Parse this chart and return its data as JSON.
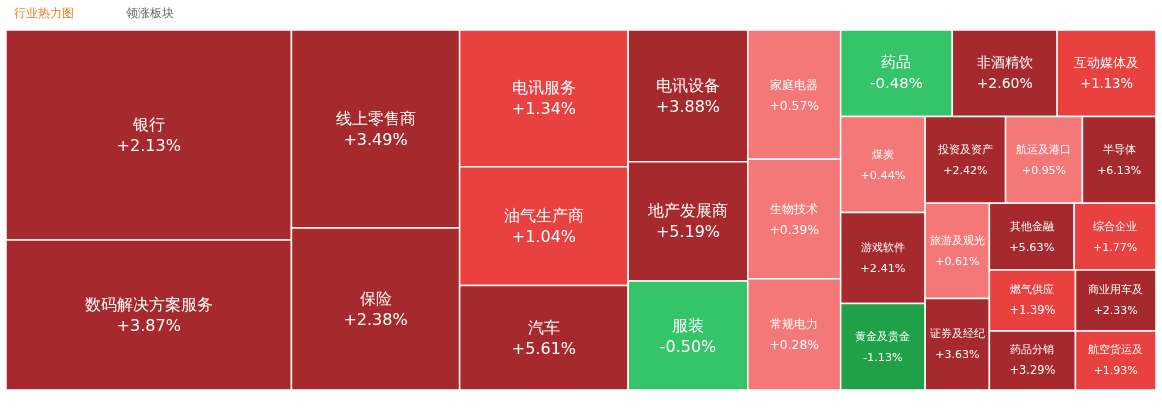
{
  "chart_data": {
    "type": "other",
    "annotations": [
      "行业热力图",
      "领涨板块"
    ],
    "categories": [
      "银行",
      "数码解决方案服务",
      "线上零售商",
      "保险",
      "电讯服务",
      "油气生产商",
      "汽车",
      "电讯设备",
      "地产发展商",
      "服装",
      "家庭电器",
      "生物技术",
      "常规电力",
      "药品",
      "非酒精饮",
      "互动媒体及",
      "煤炭",
      "游戏软件",
      "黄金及贵金",
      "投资及资产",
      "航运及港口",
      "半导体",
      "旅游及观光",
      "证券及经纪",
      "其他金融",
      "综合企业",
      "燃气供应",
      "药品分销",
      "商业用车及",
      "航空货运及"
    ],
    "values": [
      2.13,
      3.87,
      3.49,
      2.38,
      1.34,
      1.04,
      5.61,
      3.88,
      5.19,
      -0.5,
      0.57,
      0.39,
      0.28,
      -0.48,
      2.6,
      1.13,
      0.44,
      2.41,
      -1.13,
      2.42,
      0.95,
      6.13,
      0.61,
      3.63,
      5.63,
      1.77,
      1.39,
      3.29,
      2.33,
      1.93
    ],
    "value_labels": [
      "+2.13%",
      "+3.87%",
      "+3.49%",
      "+2.38%",
      "+1.34%",
      "+1.04%",
      "+5.61%",
      "+3.88%",
      "+5.19%",
      "-0.50%",
      "+0.57%",
      "+0.39%",
      "+0.28%",
      "-0.48%",
      "+2.60%",
      "+1.13%",
      "+0.44%",
      "+2.41%",
      "-1.13%",
      "+2.42%",
      "+0.95%",
      "+6.13%",
      "+0.61%",
      "+3.63%",
      "+5.63%",
      "+1.77%",
      "+1.39%",
      "+3.29%",
      "+2.33%",
      "+1.93%"
    ]
  }
}
